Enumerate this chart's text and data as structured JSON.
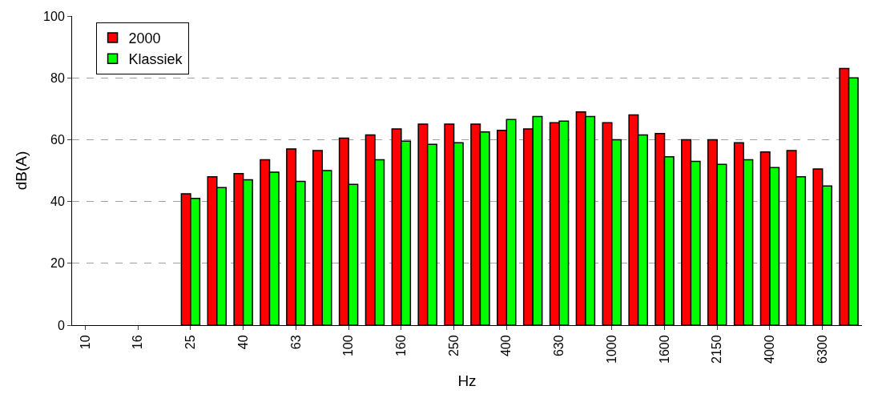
{
  "chart_data": {
    "type": "bar",
    "xlabel": "Hz",
    "ylabel": "dB(A)",
    "categories": [
      "10",
      null,
      "16",
      null,
      "25",
      null,
      "40",
      null,
      "63",
      null,
      "100",
      null,
      "160",
      null,
      "250",
      null,
      "400",
      null,
      "630",
      null,
      "1000",
      null,
      "1600",
      null,
      "2150",
      null,
      "4000",
      null,
      "6300",
      null
    ],
    "series": [
      {
        "name": "2000",
        "color": "#ff0000",
        "values": [
          null,
          null,
          null,
          null,
          42.5,
          48,
          49,
          53.5,
          57,
          56.5,
          60.5,
          61.5,
          63.5,
          65,
          65,
          65,
          63,
          63.5,
          65.5,
          69,
          65.5,
          68,
          62,
          60,
          60,
          59,
          56,
          56.5,
          50.5,
          83
        ]
      },
      {
        "name": "Klassiek",
        "color": "#00ff00",
        "values": [
          null,
          null,
          null,
          null,
          41,
          44.5,
          47,
          49.5,
          46.5,
          50,
          45.5,
          53.5,
          59.5,
          58.5,
          59,
          62.5,
          66.5,
          67.5,
          66,
          67.5,
          60,
          61.5,
          54.5,
          53,
          52,
          53.5,
          51,
          48,
          45,
          80
        ]
      }
    ],
    "ylim": [
      0,
      100
    ],
    "yticks": [
      0,
      20,
      40,
      60,
      80,
      100
    ],
    "grid": "y",
    "legend": "top left"
  }
}
